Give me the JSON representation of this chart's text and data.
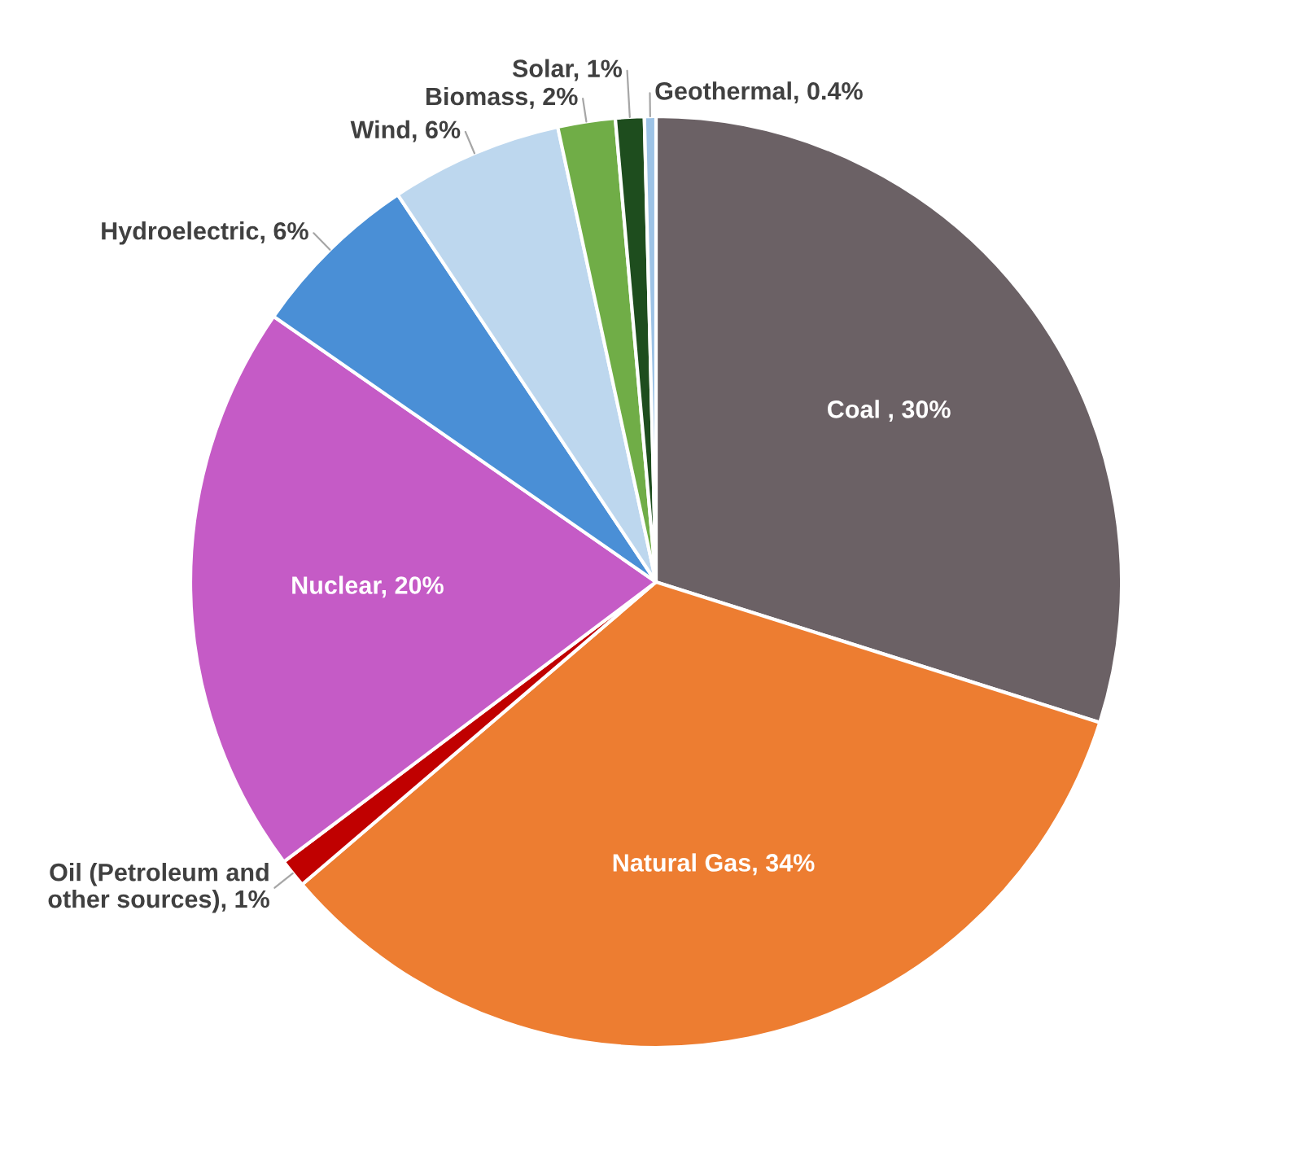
{
  "chart_data": {
    "type": "pie",
    "categories": [
      "Coal ",
      "Natural Gas",
      "Oil (Petroleum and\nother sources)",
      "Nuclear",
      "Hydroelectric",
      "Wind",
      "Biomass",
      "Solar",
      "Geothermal"
    ],
    "values": [
      30,
      34,
      1,
      20,
      6,
      6,
      2,
      1,
      0.4
    ],
    "value_labels": [
      "30%",
      "34%",
      "1%",
      "20%",
      "6%",
      "6%",
      "2%",
      "1%",
      "0.4%"
    ],
    "colors": [
      "#6b6165",
      "#ed7d31",
      "#c00000",
      "#c55bc6",
      "#4a8fd6",
      "#bdd7ee",
      "#70ad47",
      "#1e4d1e",
      "#9dc3e6"
    ],
    "data_labels": true
  }
}
